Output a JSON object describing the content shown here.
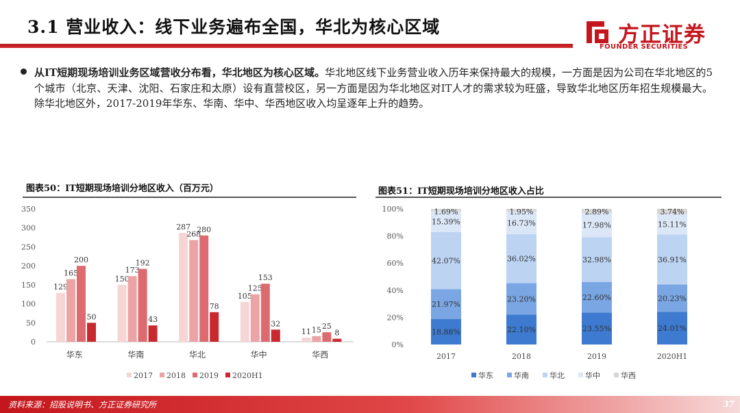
{
  "header": {
    "title": "3.1 营业收入：线下业务遍布全国，华北为核心区域",
    "logo_text": "方正证券",
    "logo_sub": "FOUNDER SECURITIES"
  },
  "body": {
    "bold_lead": "从IT短期现场培训业务区域营收分布看，华北地区为核心区域。",
    "text": "华北地区线下业务营业收入历年来保持最大的规模，一方面是因为公司在华北地区的5个城市（北京、天津、沈阳、石家庄和太原）设有直营校区，另一方面是因为华北地区对IT人才的需求较为旺盛，导致华北地区历年招生规模最大。除华北地区外，2017-2019年华东、华南、华中、华西地区收入均呈逐年上升的趋势。"
  },
  "chart1_title": "图表50：IT短期现场培训分地区收入（百万元）",
  "chart2_title": "图表51：IT短期现场培训分地区收入占比",
  "footer": {
    "source": "资料来源：招股说明书、方正证券研究所",
    "page": "37"
  },
  "colors": {
    "brand": "#c4161c",
    "c2017": "#f6d5d5",
    "c2018": "#eba3a6",
    "c2019": "#dc6a6f",
    "c2020": "#c8282e",
    "east": "#3d7ad0",
    "south": "#7aa6e3",
    "north": "#bcd3f2",
    "central": "#dbe6f7",
    "west": "#d6d6d6"
  },
  "chart_data": [
    {
      "type": "bar",
      "categories": [
        "华东",
        "华南",
        "华北",
        "华中",
        "华西"
      ],
      "series": [
        {
          "name": "2017",
          "values": [
            129,
            150,
            287,
            105,
            11
          ]
        },
        {
          "name": "2018",
          "values": [
            165,
            173,
            268,
            125,
            15
          ]
        },
        {
          "name": "2019",
          "values": [
            200,
            192,
            280,
            153,
            25
          ]
        },
        {
          "name": "2020H1",
          "values": [
            50,
            43,
            78,
            32,
            8
          ]
        }
      ],
      "yticks": [
        "0",
        "50",
        "100",
        "150",
        "200",
        "250",
        "300",
        "350"
      ],
      "ylim": [
        0,
        350
      ]
    },
    {
      "type": "bar",
      "stacked": true,
      "categories": [
        "2017",
        "2018",
        "2019",
        "2020H1"
      ],
      "series": [
        {
          "name": "华东",
          "values": [
            18.88,
            22.1,
            23.55,
            24.01
          ],
          "labels": [
            "18.88%",
            "22.10%",
            "23.55%",
            "24.01%"
          ]
        },
        {
          "name": "华南",
          "values": [
            21.97,
            23.2,
            22.6,
            20.23
          ],
          "labels": [
            "21.97%",
            "23.20%",
            "22.60%",
            "20.23%"
          ]
        },
        {
          "name": "华北",
          "values": [
            42.07,
            36.02,
            32.98,
            36.91
          ],
          "labels": [
            "42.07%",
            "36.02%",
            "32.98%",
            "36.91%"
          ]
        },
        {
          "name": "华中",
          "values": [
            15.39,
            16.73,
            17.98,
            15.11
          ],
          "labels": [
            "15.39%",
            "16.73%",
            "17.98%",
            "15.11%"
          ]
        },
        {
          "name": "华西",
          "values": [
            1.69,
            1.95,
            2.89,
            3.74
          ],
          "labels": [
            "1.69%",
            "1.95%",
            "2.89%",
            "3.74%"
          ]
        }
      ],
      "yticks": [
        "0%",
        "20%",
        "40%",
        "60%",
        "80%",
        "100%"
      ],
      "ylim": [
        0,
        100
      ]
    }
  ]
}
